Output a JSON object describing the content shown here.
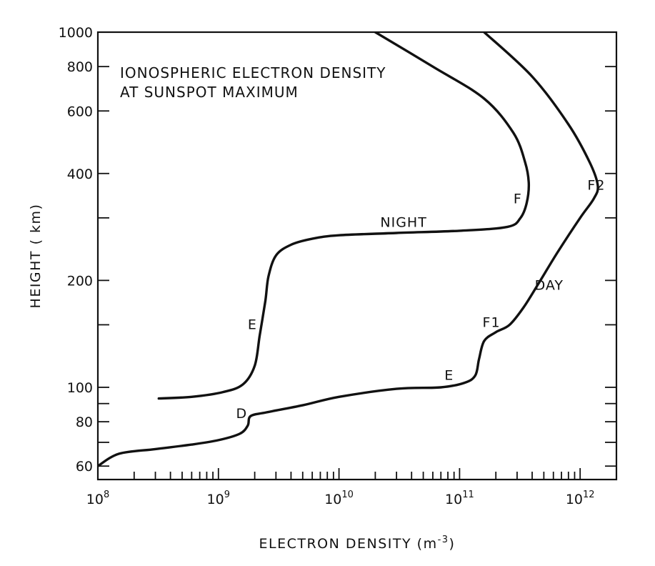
{
  "chart_data": {
    "type": "line",
    "title_lines": [
      "IONOSPHERIC ELECTRON DENSITY",
      "AT SUNSPOT MAXIMUM"
    ],
    "xlabel": {
      "base": "ELECTRON DENSITY (m",
      "sup": "-3",
      "end": ")"
    },
    "ylabel": "HEIGHT ( km)",
    "x_scale": "log",
    "y_scale": "log",
    "xlim": [
      100000000.0,
      2000000000000.0
    ],
    "ylim": [
      55,
      1000
    ],
    "x_ticks": [
      {
        "value": 100000000.0,
        "base": "10",
        "exp": "8"
      },
      {
        "value": 1000000000.0,
        "base": "10",
        "exp": "9"
      },
      {
        "value": 10000000000.0,
        "base": "10",
        "exp": "10"
      },
      {
        "value": 100000000000.0,
        "base": "10",
        "exp": "11"
      },
      {
        "value": 1000000000000.0,
        "base": "10",
        "exp": "12"
      }
    ],
    "y_ticks": [
      {
        "value": 60,
        "label": "60"
      },
      {
        "value": 70,
        "label": ""
      },
      {
        "value": 80,
        "label": "80"
      },
      {
        "value": 90,
        "label": ""
      },
      {
        "value": 100,
        "label": "100"
      },
      {
        "value": 150,
        "label": ""
      },
      {
        "value": 200,
        "label": "200"
      },
      {
        "value": 300,
        "label": ""
      },
      {
        "value": 400,
        "label": "400"
      },
      {
        "value": 600,
        "label": "600"
      },
      {
        "value": 800,
        "label": "800"
      },
      {
        "value": 1000,
        "label": "1000"
      }
    ],
    "grid": false,
    "series": [
      {
        "name": "NIGHT",
        "points": [
          [
            320000000.0,
            93
          ],
          [
            600000000.0,
            94
          ],
          [
            1100000000.0,
            97
          ],
          [
            1600000000.0,
            102
          ],
          [
            2000000000.0,
            115
          ],
          [
            2200000000.0,
            140
          ],
          [
            2450000000.0,
            175
          ],
          [
            2600000000.0,
            205
          ],
          [
            3000000000.0,
            235
          ],
          [
            4000000000.0,
            252
          ],
          [
            6000000000.0,
            262
          ],
          [
            10000000000.0,
            268
          ],
          [
            30000000000.0,
            272
          ],
          [
            100000000000.0,
            276
          ],
          [
            250000000000.0,
            283
          ],
          [
            320000000000.0,
            300
          ],
          [
            360000000000.0,
            330
          ],
          [
            375000000000.0,
            375
          ],
          [
            350000000000.0,
            430
          ],
          [
            280000000000.0,
            520
          ],
          [
            160000000000.0,
            650
          ],
          [
            60000000000.0,
            800
          ],
          [
            20000000000.0,
            1000
          ]
        ]
      },
      {
        "name": "DAY",
        "points": [
          [
            100000000.0,
            60
          ],
          [
            150000000.0,
            65
          ],
          [
            300000000.0,
            67
          ],
          [
            600000000.0,
            69
          ],
          [
            1000000000.0,
            71
          ],
          [
            1500000000.0,
            74
          ],
          [
            1750000000.0,
            78
          ],
          [
            1850000000.0,
            83
          ],
          [
            2500000000.0,
            85
          ],
          [
            5000000000.0,
            89
          ],
          [
            10000000000.0,
            94
          ],
          [
            30000000000.0,
            99
          ],
          [
            70000000000.0,
            100
          ],
          [
            110000000000.0,
            103
          ],
          [
            135000000000.0,
            108
          ],
          [
            145000000000.0,
            120
          ],
          [
            160000000000.0,
            135
          ],
          [
            200000000000.0,
            143
          ],
          [
            260000000000.0,
            150
          ],
          [
            340000000000.0,
            168
          ],
          [
            460000000000.0,
            198
          ],
          [
            650000000000.0,
            240
          ],
          [
            1000000000000.0,
            300
          ],
          [
            1300000000000.0,
            340
          ],
          [
            1400000000000.0,
            370
          ],
          [
            1200000000000.0,
            430
          ],
          [
            800000000000.0,
            550
          ],
          [
            400000000000.0,
            750
          ],
          [
            160000000000.0,
            1000
          ]
        ]
      }
    ],
    "annotations": [
      {
        "text": "NIGHT",
        "x": 22000000000.0,
        "y": 283
      },
      {
        "text": "F",
        "x": 280000000000.0,
        "y": 330
      },
      {
        "text": "E",
        "x": 1750000000.0,
        "y": 146
      },
      {
        "text": "F2",
        "x": 1150000000000.0,
        "y": 360
      },
      {
        "text": "DAY",
        "x": 420000000000.0,
        "y": 188
      },
      {
        "text": "F1",
        "x": 155000000000.0,
        "y": 148
      },
      {
        "text": "E",
        "x": 75000000000.0,
        "y": 105
      },
      {
        "text": "D",
        "x": 1400000000.0,
        "y": 82
      }
    ]
  }
}
